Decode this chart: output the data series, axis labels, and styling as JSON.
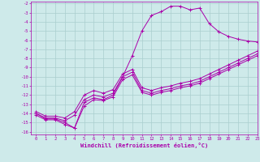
{
  "title": "",
  "xlabel": "Windchill (Refroidissement éolien,°C)",
  "xlim": [
    -0.5,
    23
  ],
  "ylim": [
    -16.3,
    -1.8
  ],
  "yticks": [
    -2,
    -3,
    -4,
    -5,
    -6,
    -7,
    -8,
    -9,
    -10,
    -11,
    -12,
    -13,
    -14,
    -15,
    -16
  ],
  "xticks": [
    0,
    1,
    2,
    3,
    4,
    5,
    6,
    7,
    8,
    9,
    10,
    11,
    12,
    13,
    14,
    15,
    16,
    17,
    18,
    19,
    20,
    21,
    22,
    23
  ],
  "bg_color": "#ceeaea",
  "grid_color": "#aacece",
  "line_color": "#aa00aa",
  "line1_x": [
    0,
    1,
    2,
    3,
    4,
    5,
    6,
    7,
    8,
    9,
    10,
    11,
    12,
    13,
    14,
    15,
    16,
    17,
    18,
    19,
    20,
    21,
    22,
    23
  ],
  "line1_y": [
    -14.0,
    -14.6,
    -14.6,
    -15.0,
    -15.6,
    -12.8,
    -12.3,
    -12.5,
    -12.0,
    -10.0,
    -7.7,
    -5.0,
    -3.3,
    -2.9,
    -2.3,
    -2.3,
    -2.7,
    -2.5,
    -4.2,
    -5.1,
    -5.6,
    -5.9,
    -6.1,
    -6.2
  ],
  "line2_x": [
    0,
    1,
    2,
    3,
    4,
    5,
    6,
    7,
    8,
    9,
    10,
    11,
    12,
    13,
    14,
    15,
    16,
    17,
    18,
    19,
    20,
    21,
    22,
    23
  ],
  "line2_y": [
    -14.0,
    -14.5,
    -14.5,
    -14.8,
    -14.2,
    -12.5,
    -12.0,
    -12.2,
    -11.8,
    -10.0,
    -9.5,
    -11.5,
    -11.8,
    -11.5,
    -11.3,
    -11.0,
    -10.8,
    -10.5,
    -10.0,
    -9.5,
    -9.0,
    -8.5,
    -8.0,
    -7.5
  ],
  "line3_x": [
    0,
    1,
    2,
    3,
    4,
    5,
    6,
    7,
    8,
    9,
    10,
    11,
    12,
    13,
    14,
    15,
    16,
    17,
    18,
    19,
    20,
    21,
    22,
    23
  ],
  "line3_y": [
    -14.2,
    -14.7,
    -14.7,
    -15.2,
    -15.6,
    -13.2,
    -12.5,
    -12.6,
    -12.2,
    -10.3,
    -9.8,
    -11.7,
    -12.0,
    -11.7,
    -11.5,
    -11.2,
    -11.0,
    -10.7,
    -10.2,
    -9.7,
    -9.2,
    -8.7,
    -8.2,
    -7.7
  ],
  "line4_x": [
    0,
    1,
    2,
    3,
    4,
    5,
    6,
    7,
    8,
    9,
    10,
    11,
    12,
    13,
    14,
    15,
    16,
    17,
    18,
    19,
    20,
    21,
    22,
    23
  ],
  "line4_y": [
    -13.8,
    -14.3,
    -14.3,
    -14.5,
    -13.8,
    -12.0,
    -11.5,
    -11.8,
    -11.4,
    -9.7,
    -9.2,
    -11.2,
    -11.5,
    -11.2,
    -11.0,
    -10.7,
    -10.5,
    -10.2,
    -9.7,
    -9.2,
    -8.7,
    -8.2,
    -7.7,
    -7.2
  ]
}
